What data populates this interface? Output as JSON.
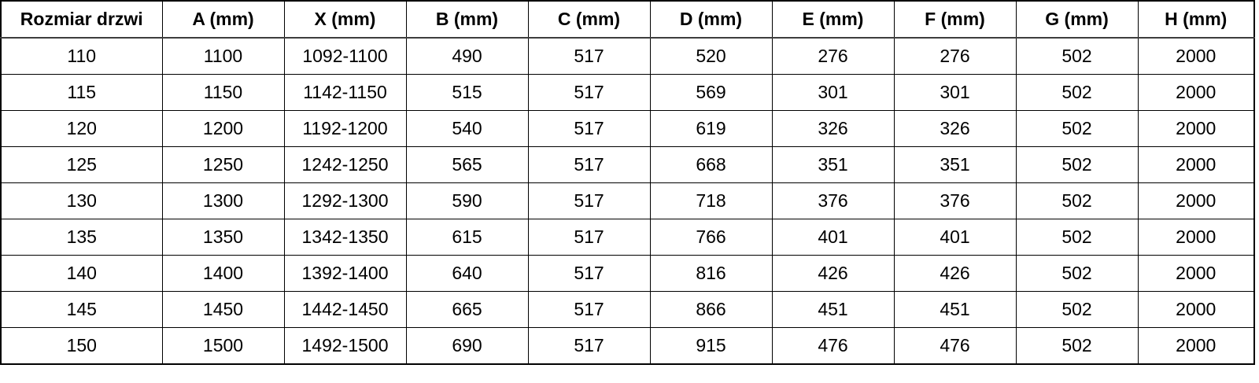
{
  "table": {
    "title_column": "Rozmiar drzwi",
    "columns": [
      "Rozmiar drzwi",
      "A (mm)",
      "X (mm)",
      "B (mm)",
      "C (mm)",
      "D (mm)",
      "E (mm)",
      "F (mm)",
      "G (mm)",
      "H (mm)"
    ],
    "rows": [
      [
        "110",
        "1100",
        "1092-1100",
        "490",
        "517",
        "520",
        "276",
        "276",
        "502",
        "2000"
      ],
      [
        "115",
        "1150",
        "1142-1150",
        "515",
        "517",
        "569",
        "301",
        "301",
        "502",
        "2000"
      ],
      [
        "120",
        "1200",
        "1192-1200",
        "540",
        "517",
        "619",
        "326",
        "326",
        "502",
        "2000"
      ],
      [
        "125",
        "1250",
        "1242-1250",
        "565",
        "517",
        "668",
        "351",
        "351",
        "502",
        "2000"
      ],
      [
        "130",
        "1300",
        "1292-1300",
        "590",
        "517",
        "718",
        "376",
        "376",
        "502",
        "2000"
      ],
      [
        "135",
        "1350",
        "1342-1350",
        "615",
        "517",
        "766",
        "401",
        "401",
        "502",
        "2000"
      ],
      [
        "140",
        "1400",
        "1392-1400",
        "640",
        "517",
        "816",
        "426",
        "426",
        "502",
        "2000"
      ],
      [
        "145",
        "1450",
        "1442-1450",
        "665",
        "517",
        "866",
        "451",
        "451",
        "502",
        "2000"
      ],
      [
        "150",
        "1500",
        "1492-1500",
        "690",
        "517",
        "915",
        "476",
        "476",
        "502",
        "2000"
      ]
    ],
    "colors": {
      "border": "#000000",
      "text": "#000000",
      "background": "#ffffff"
    }
  }
}
